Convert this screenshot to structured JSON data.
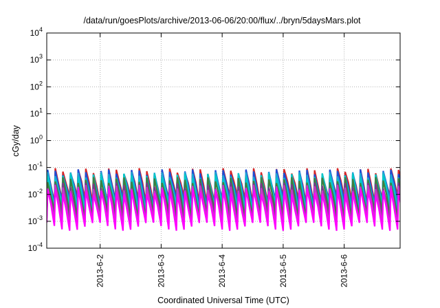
{
  "chart_data": {
    "type": "line",
    "title": "/data/run/goesPlots/archive/2013-06-06/20:00/flux/../bryn/5daysMars.plot",
    "xlabel": "Coordinated Universal Time (UTC)",
    "ylabel": "cGy/day",
    "y_scale": "log",
    "ylim": [
      0.0001,
      10000
    ],
    "xlim": [
      "2013-06-01 03:00",
      "2013-06-06 22:00"
    ],
    "grid": true,
    "x_ticks": [
      "2013-6-2",
      "2013-6-3",
      "2013-6-4",
      "2013-6-5",
      "2013-6-6"
    ],
    "y_ticks": [
      {
        "base": "10",
        "exp": "-4",
        "value": 0.0001
      },
      {
        "base": "10",
        "exp": "-3",
        "value": 0.001
      },
      {
        "base": "10",
        "exp": "-2",
        "value": 0.01
      },
      {
        "base": "10",
        "exp": "-1",
        "value": 0.1
      },
      {
        "base": "10",
        "exp": "0",
        "value": 1
      },
      {
        "base": "10",
        "exp": "1",
        "value": 10
      },
      {
        "base": "10",
        "exp": "2",
        "value": 100
      },
      {
        "base": "10",
        "exp": "3",
        "value": 1000
      },
      {
        "base": "10",
        "exp": "4",
        "value": 10000
      }
    ],
    "pattern": {
      "period_hours": 3,
      "start": "2013-06-01 03:00",
      "end": "2013-06-06 22:00"
    },
    "series": [
      {
        "color": "#d62728",
        "peak": 0.075,
        "trough": 0.006
      },
      {
        "color": "#1f4fd6",
        "peak": 0.068,
        "trough": 0.0045
      },
      {
        "color": "#1fa5d6",
        "peak": 0.055,
        "trough": 0.0032
      },
      {
        "color": "#00c8c8",
        "peak": 0.048,
        "trough": 0.0025
      },
      {
        "color": "#3f7f3f",
        "peak": 0.035,
        "trough": 0.0017
      },
      {
        "color": "#7a3a8a",
        "peak": 0.022,
        "trough": 0.0011
      },
      {
        "color": "#c838c8",
        "peak": 0.018,
        "trough": 0.00085
      },
      {
        "color": "#ff00ff",
        "peak": 0.013,
        "trough": 0.0006
      }
    ]
  }
}
